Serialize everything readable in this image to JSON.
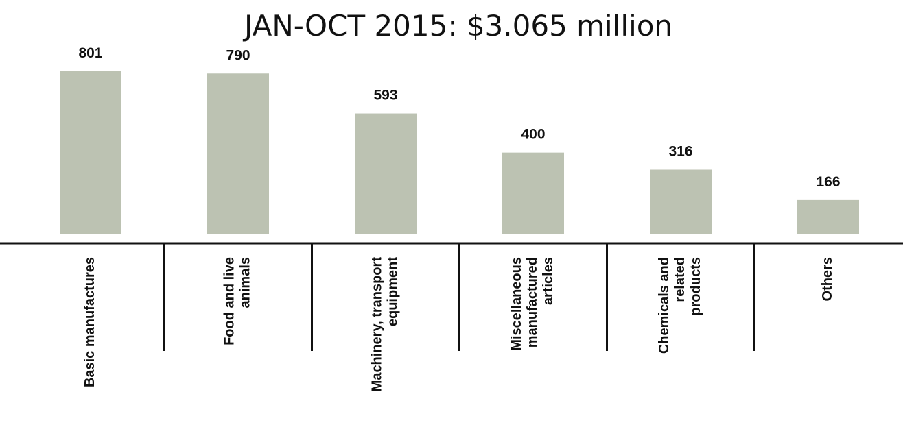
{
  "chart_data": {
    "type": "bar",
    "title": "JAN-OCT 2015: $3.065 million",
    "categories": [
      [
        "Basic manufactures"
      ],
      [
        "Food and live",
        "animals"
      ],
      [
        "Machinery, transport",
        "equipment"
      ],
      [
        "Miscellaneous",
        "manufactured",
        "articles"
      ],
      [
        "Chemicals and",
        "related",
        "products"
      ],
      [
        "Others"
      ]
    ],
    "values": [
      801,
      790,
      593,
      400,
      316,
      166
    ],
    "color": "#bcc2b2"
  }
}
